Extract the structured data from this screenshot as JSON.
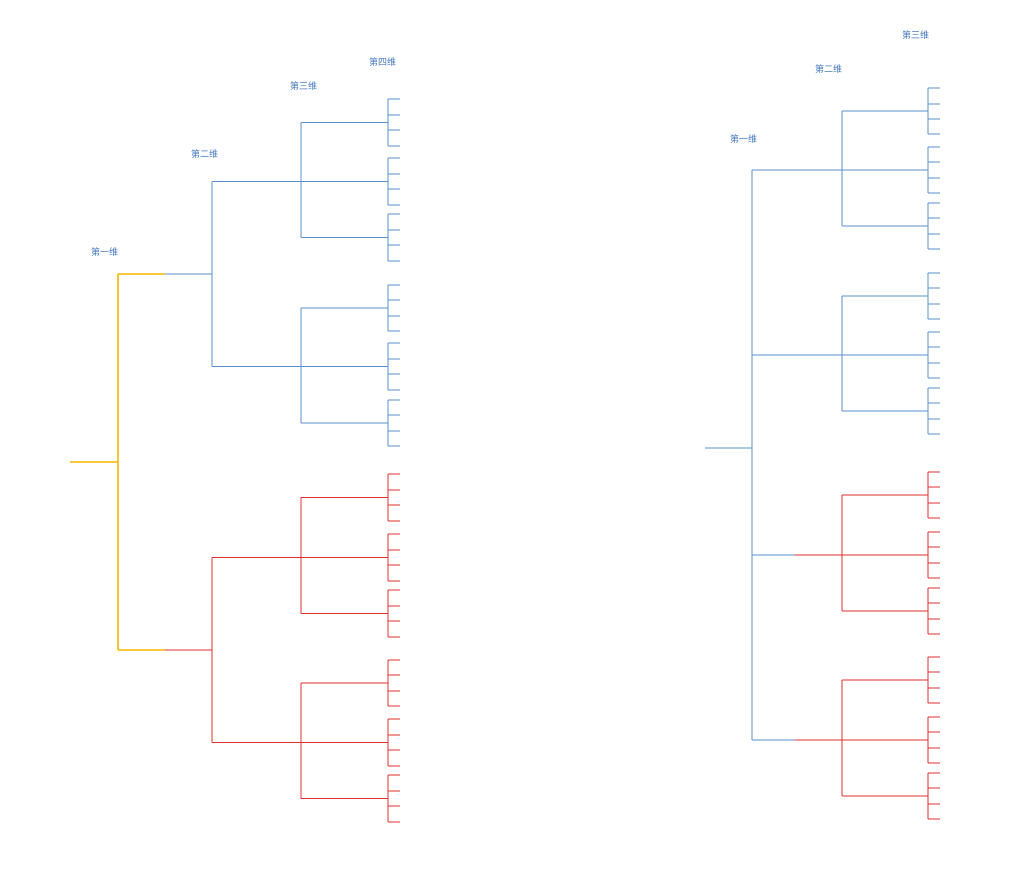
{
  "left_tree": {
    "labels": {
      "dim1": "第一维",
      "dim2": "第二维",
      "dim3": "第三维",
      "dim4": "第四维"
    },
    "colors": {
      "root": "#f5b700",
      "blue": "#5b8fcf",
      "red": "#e03030"
    }
  },
  "right_tree": {
    "labels": {
      "dim1": "第一维",
      "dim2": "第二维",
      "dim3": "第三维"
    },
    "colors": {
      "blue": "#5b8fcf",
      "red": "#e03030"
    }
  }
}
